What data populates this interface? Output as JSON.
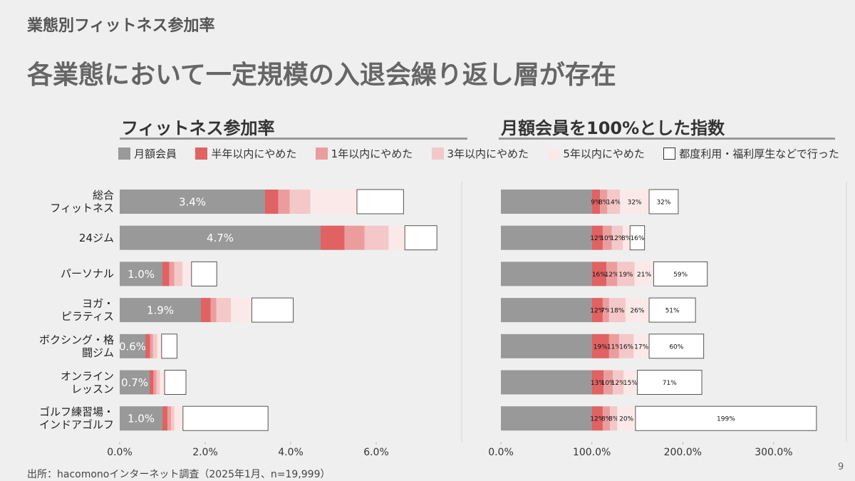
{
  "header": {
    "title": "業態別フィットネス参加率",
    "subtitle": "各業態において一定規模の入退会繰り返し層が存在"
  },
  "chart_data": [
    {
      "type": "bar",
      "orientation": "horizontal",
      "stacked": true,
      "title": "フィットネス参加率",
      "categories": [
        "総合\nフィットネス",
        "24ジム",
        "パーソナル",
        "ヨガ・\nピラティス",
        "ボクシング・格\n闘ジム",
        "オンライン\nレッスン",
        "ゴルフ練習場・\nインドアゴルフ"
      ],
      "series": [
        {
          "name": "月額会員",
          "color": "#999999",
          "values": [
            3.4,
            4.7,
            1.0,
            1.9,
            0.6,
            0.7,
            1.0
          ],
          "value_labels": [
            "3.4%",
            "4.7%",
            "1.0%",
            "1.9%",
            "0.6%",
            "0.7%",
            "1.0%"
          ]
        },
        {
          "name": "半年以内にやめた",
          "color": "#e06262",
          "values": [
            0.31,
            0.56,
            0.16,
            0.23,
            0.11,
            0.09,
            0.12
          ]
        },
        {
          "name": "1年以内にやめた",
          "color": "#eb9d9d",
          "values": [
            0.27,
            0.47,
            0.12,
            0.13,
            0.07,
            0.07,
            0.08
          ]
        },
        {
          "name": "3年以内にやめた",
          "color": "#f4c8c8",
          "values": [
            0.48,
            0.56,
            0.19,
            0.34,
            0.1,
            0.08,
            0.08
          ]
        },
        {
          "name": "5年以内にやめた",
          "color": "#fbe9e9",
          "values": [
            1.09,
            0.38,
            0.21,
            0.49,
            0.1,
            0.11,
            0.2
          ]
        },
        {
          "name": "都度利用・福利厚生などで行った",
          "color": "#ffffff",
          "values": [
            1.09,
            0.75,
            0.59,
            0.97,
            0.36,
            0.5,
            1.99
          ]
        }
      ],
      "xlim": [
        0,
        8
      ],
      "xticks": [
        {
          "value": 0,
          "label": "0.0%"
        },
        {
          "value": 2,
          "label": "2.0%"
        },
        {
          "value": 4,
          "label": "4.0%"
        },
        {
          "value": 6,
          "label": "6.0%"
        }
      ]
    },
    {
      "type": "bar",
      "orientation": "horizontal",
      "stacked": true,
      "title": "月額会員を100%とした指数",
      "series": [
        {
          "color": "#999999",
          "values": [
            100,
            100,
            100,
            100,
            100,
            100,
            100
          ]
        },
        {
          "color": "#e06262",
          "values": [
            9,
            12,
            16,
            12,
            19,
            13,
            12
          ],
          "value_labels": [
            "9%",
            "12%",
            "16%",
            "12%",
            "19%",
            "13%",
            "12%"
          ]
        },
        {
          "color": "#eb9d9d",
          "values": [
            8,
            10,
            12,
            7,
            11,
            10,
            8
          ],
          "value_labels": [
            "8%",
            "10%",
            "12%",
            "7%",
            "11%",
            "10%",
            "8%"
          ]
        },
        {
          "color": "#f4c8c8",
          "values": [
            14,
            12,
            19,
            18,
            16,
            12,
            8
          ],
          "value_labels": [
            "14%",
            "12%",
            "19%",
            "18%",
            "16%",
            "12%",
            "8%"
          ]
        },
        {
          "color": "#fbe9e9",
          "values": [
            32,
            8,
            21,
            26,
            17,
            15,
            20
          ],
          "value_labels": [
            "32%",
            "8%",
            "21%",
            "26%",
            "17%",
            "15%",
            "20%"
          ]
        },
        {
          "color": "#ffffff",
          "values": [
            32,
            16,
            59,
            51,
            60,
            71,
            199
          ],
          "value_labels": [
            "32%",
            "16%",
            "59%",
            "51%",
            "60%",
            "71%",
            "199%"
          ]
        }
      ],
      "xlim": [
        0,
        380
      ],
      "xticks": [
        {
          "value": 0,
          "label": "0.0%"
        },
        {
          "value": 100,
          "label": "100.0%"
        },
        {
          "value": 200,
          "label": "200.0%"
        },
        {
          "value": 300,
          "label": "300.0%"
        }
      ]
    }
  ],
  "footer": {
    "source": "出所：hacomonoインターネット調査（2025年1月、n=19,999）",
    "page": "9"
  }
}
